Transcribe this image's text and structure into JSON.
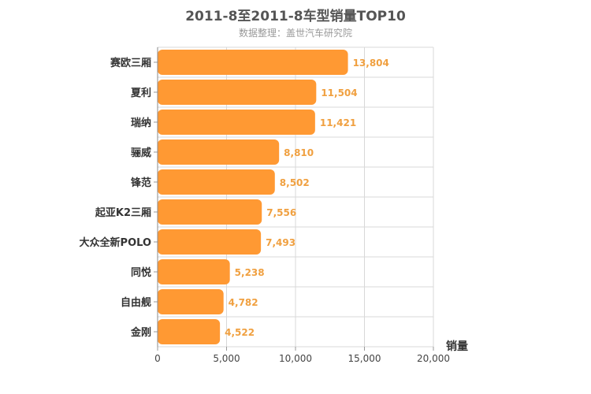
{
  "chart_data": {
    "type": "bar",
    "orientation": "horizontal",
    "title": "2011-8至2011-8车型销量TOP10",
    "subtitle": "数据整理：盖世汽车研究院",
    "categories": [
      "赛欧三厢",
      "夏利",
      "瑞纳",
      "骊威",
      "锋范",
      "起亚K2三厢",
      "大众全新POLO",
      "同悦",
      "自由舰",
      "金刚"
    ],
    "values": [
      13804,
      11504,
      11421,
      8810,
      8502,
      7556,
      7493,
      5238,
      4782,
      4522
    ],
    "value_labels": [
      "13,804",
      "11,504",
      "11,421",
      "8,810",
      "8,502",
      "7,556",
      "7,493",
      "5,238",
      "4,782",
      "4,522"
    ],
    "xlabel": "销量",
    "xlim": [
      0,
      20000
    ],
    "x_ticks": [
      0,
      5000,
      10000,
      15000,
      20000
    ],
    "x_tick_labels": [
      "0",
      "5,000",
      "10,000",
      "15,000",
      "20,000"
    ],
    "grid": true,
    "bar_color": "#ff9933",
    "value_label_color": "#f0a040"
  }
}
